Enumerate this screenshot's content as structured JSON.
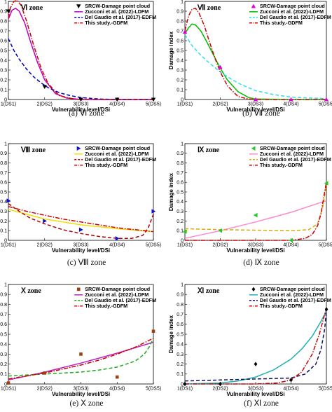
{
  "chart_data": [
    {
      "type": "line",
      "zone": "Ⅵ zone",
      "caption": "(a) Ⅵ zone",
      "xlabel": "Vulnerability level/DSi",
      "ylabel": "Damage index",
      "categories": [
        "1(DS1)",
        "2(DS2)",
        "3(DS3)",
        "4(DS4)",
        "5(DS5)"
      ],
      "ylim": [
        0,
        1
      ],
      "yticks": [
        0,
        0.1,
        0.2,
        0.3,
        0.4,
        0.5,
        0.6,
        0.7,
        0.8,
        0.9,
        1
      ],
      "legend": [
        "SRCW-Damage point cloud",
        "Zucconi et al. (2022)-LDFM",
        "Del Gaudio et al. (2017)-EDFM",
        "This study.-GDFM"
      ],
      "legend_pos": "top-right",
      "points": {
        "marker": "triangle-down",
        "color": "#000000",
        "x": [
          1,
          2,
          3,
          4,
          5
        ],
        "y": [
          0.9,
          0.13,
          0.0,
          0.0,
          0.0
        ]
      },
      "series": [
        {
          "color": "#c000c0",
          "dash": "solid",
          "x": [
            1,
            1.1,
            1.2,
            1.3,
            1.45,
            1.6,
            1.8,
            2.0,
            2.3,
            2.6,
            3.0,
            4.0,
            5.0
          ],
          "y": [
            0.82,
            0.91,
            0.93,
            0.9,
            0.78,
            0.6,
            0.38,
            0.2,
            0.06,
            0.015,
            0.0,
            0.0,
            0.0
          ]
        },
        {
          "color": "#0000c0",
          "dash": "dashed",
          "x": [
            1,
            1.15,
            1.3,
            1.5,
            1.7,
            1.9,
            2.1,
            2.4,
            2.7,
            3.0,
            3.5,
            4.0,
            5.0
          ],
          "y": [
            0.62,
            0.5,
            0.41,
            0.31,
            0.23,
            0.17,
            0.12,
            0.07,
            0.04,
            0.02,
            0.005,
            0.0,
            0.0
          ]
        },
        {
          "color": "#d00000",
          "dash": "dashdot",
          "x": [
            1,
            1.05,
            1.15,
            1.25,
            1.35,
            1.5,
            1.7,
            1.9,
            2.1,
            2.4,
            2.8,
            3.0,
            4.0,
            5.0
          ],
          "y": [
            0.83,
            0.93,
            1.0,
            1.01,
            0.96,
            0.8,
            0.55,
            0.32,
            0.16,
            0.04,
            0.005,
            0.0,
            0.0,
            0.0
          ]
        }
      ]
    },
    {
      "type": "line",
      "zone": "Ⅶ zone",
      "caption": "(b) Ⅶ zone",
      "xlabel": "Vulnerability level/DSi",
      "ylabel": "Damage index",
      "categories": [
        "1(DS1)",
        "2(DS2)",
        "3(DS3)",
        "4(DS4)",
        "5(DS5)"
      ],
      "ylim": [
        0,
        1
      ],
      "yticks": [
        0,
        0.1,
        0.2,
        0.3,
        0.4,
        0.5,
        0.6,
        0.7,
        0.8,
        0.9,
        1
      ],
      "legend": [
        "SRCW-Damage point cloud",
        "Zucconi et al. (2022)-LDFM",
        "Del Gaudio et al. (2017)-EDFM",
        "This study.-GDFM"
      ],
      "legend_pos": "top-right",
      "points": {
        "marker": "triangle-up",
        "color": "#e000e0",
        "x": [
          1,
          2,
          3,
          4,
          5
        ],
        "y": [
          0.69,
          0.33,
          0.0,
          0.0,
          0.0
        ]
      },
      "series": [
        {
          "color": "#00bb00",
          "dash": "solid",
          "x": [
            1,
            1.1,
            1.2,
            1.3,
            1.45,
            1.6,
            1.8,
            2.0,
            2.2,
            2.5,
            2.8,
            3.0,
            4.0,
            5.0
          ],
          "y": [
            0.67,
            0.73,
            0.77,
            0.76,
            0.7,
            0.6,
            0.46,
            0.32,
            0.2,
            0.08,
            0.02,
            0.005,
            0.0,
            0.0
          ]
        },
        {
          "color": "#33ddee",
          "dash": "dashed",
          "x": [
            1,
            1.2,
            1.4,
            1.6,
            1.8,
            2.0,
            2.3,
            2.6,
            3.0,
            3.5,
            4.0,
            4.5,
            5.0
          ],
          "y": [
            0.66,
            0.55,
            0.47,
            0.4,
            0.34,
            0.28,
            0.21,
            0.15,
            0.09,
            0.05,
            0.025,
            0.015,
            0.01
          ]
        },
        {
          "color": "#d00000",
          "dash": "dashdot",
          "x": [
            1,
            1.1,
            1.2,
            1.3,
            1.4,
            1.55,
            1.7,
            1.85,
            2.0,
            2.2,
            2.5,
            2.8,
            3.0,
            4.0,
            5.0
          ],
          "y": [
            0.7,
            0.85,
            0.92,
            0.93,
            0.88,
            0.75,
            0.58,
            0.42,
            0.28,
            0.14,
            0.03,
            0.005,
            0.0,
            0.0,
            0.0
          ]
        }
      ]
    },
    {
      "type": "line",
      "zone": "Ⅷ zone",
      "caption": "(c) Ⅷ zone",
      "xlabel": "Vulnerability level/DSi",
      "ylabel": "Damage index",
      "categories": [
        "1(DS1)",
        "2(DS2)",
        "3(DS3)",
        "4(DS4)",
        "5(DS5)"
      ],
      "ylim": [
        0,
        1
      ],
      "yticks": [
        0,
        0.1,
        0.2,
        0.3,
        0.4,
        0.5,
        0.6,
        0.7,
        0.8,
        0.9,
        1
      ],
      "legend": [
        "SRCW-Damage point cloud",
        "Zucconi et al. (2022)-LDFM",
        "Del Gaudio et al. (2017)-EDFM",
        "This study.-GDFM"
      ],
      "legend_pos": "top-right",
      "points": {
        "marker": "triangle-right",
        "color": "#1010d0",
        "x": [
          1,
          2,
          3,
          4,
          5
        ],
        "y": [
          0.41,
          0.2,
          0.11,
          0.02,
          0.3
        ]
      },
      "series": [
        {
          "color": "#f0e000",
          "dash": "solid",
          "x": [
            1,
            2,
            3,
            4,
            5
          ],
          "y": [
            0.32,
            0.22,
            0.16,
            0.12,
            0.09
          ]
        },
        {
          "color": "#b00000",
          "dash": "dashed",
          "x": [
            1,
            1.3,
            1.6,
            2.0,
            2.5,
            3.0,
            3.5,
            4.0,
            4.4,
            4.7,
            4.85,
            5.0
          ],
          "y": [
            0.38,
            0.3,
            0.23,
            0.17,
            0.11,
            0.07,
            0.04,
            0.02,
            0.02,
            0.05,
            0.12,
            0.27
          ]
        },
        {
          "color": "#d00000",
          "dash": "dashdot",
          "x": [
            1,
            1.5,
            2.0,
            2.5,
            3.0,
            3.5,
            4.0,
            4.5,
            5.0
          ],
          "y": [
            0.35,
            0.3,
            0.26,
            0.22,
            0.19,
            0.16,
            0.13,
            0.11,
            0.09
          ]
        }
      ]
    },
    {
      "type": "line",
      "zone": "Ⅸ zone",
      "caption": "(d) Ⅸ zone",
      "xlabel": "Vulnerability level/DSi",
      "ylabel": "Damage index",
      "categories": [
        "1(DS1)",
        "2(DS2)",
        "3(DS3)",
        "4(DS4)",
        "5(DS5)"
      ],
      "ylim": [
        0,
        1
      ],
      "yticks": [
        0,
        0.1,
        0.2,
        0.3,
        0.4,
        0.5,
        0.6,
        0.7,
        0.8,
        0.9,
        1
      ],
      "legend": [
        "SRCW-Damage point cloud",
        "Zucconi et al. (2022)-LDFM",
        "Del Gaudio et al. (2017)-EDFM",
        "This study.-GDFM"
      ],
      "legend_pos": "top-right",
      "points": {
        "marker": "triangle-left",
        "color": "#20cc20",
        "x": [
          1,
          2,
          3,
          4,
          5
        ],
        "y": [
          0.09,
          0.1,
          0.26,
          0.0,
          0.59
        ]
      },
      "series": [
        {
          "color": "#ff88cc",
          "dash": "solid",
          "x": [
            1,
            2,
            3,
            4,
            5
          ],
          "y": [
            0.02,
            0.1,
            0.19,
            0.29,
            0.41
          ]
        },
        {
          "color": "#ddaa00",
          "dash": "dashed",
          "x": [
            1,
            2,
            3,
            4,
            4.5,
            4.75,
            4.9,
            5.0
          ],
          "y": [
            0.12,
            0.11,
            0.105,
            0.1,
            0.11,
            0.17,
            0.35,
            0.58
          ]
        },
        {
          "color": "#d00000",
          "dash": "dashdot",
          "x": [
            1,
            2,
            3,
            4,
            4.4,
            4.6,
            4.75,
            4.85,
            4.95,
            5.0
          ],
          "y": [
            0.0,
            0.0,
            0.0,
            0.0,
            0.02,
            0.06,
            0.15,
            0.28,
            0.5,
            0.6
          ]
        }
      ]
    },
    {
      "type": "line",
      "zone": "Ⅹ zone",
      "caption": "(e) Ⅹ zone",
      "xlabel": "Vulnerability level/DSi",
      "ylabel": "Damage index",
      "categories": [
        "1(DS1)",
        "2(DS2)",
        "3(DS3)",
        "4(DS4)",
        "5(DS5)"
      ],
      "ylim": [
        0,
        1
      ],
      "yticks": [
        0,
        0.1,
        0.2,
        0.3,
        0.4,
        0.5,
        0.6,
        0.7,
        0.8,
        0.9,
        1
      ],
      "legend": [
        "SRCW-Damage point cloud",
        "Zucconi et al. (2022)-LDFM",
        "Del Gaudio et al. (2017)-EDFM",
        "This study.-GDFM"
      ],
      "legend_pos": "top-right",
      "points": {
        "marker": "square",
        "color": "#a04010",
        "x": [
          1,
          2,
          3,
          4,
          5
        ],
        "y": [
          0.01,
          0.11,
          0.3,
          0.07,
          0.53
        ]
      },
      "series": [
        {
          "color": "#c020c0",
          "dash": "solid",
          "x": [
            1,
            2,
            3,
            4,
            5
          ],
          "y": [
            0.04,
            0.12,
            0.21,
            0.31,
            0.42
          ]
        },
        {
          "color": "#20aa20",
          "dash": "dashed",
          "x": [
            1,
            2,
            3,
            3.5,
            4.0,
            4.5,
            4.75,
            4.9,
            5.0
          ],
          "y": [
            0.08,
            0.1,
            0.12,
            0.14,
            0.17,
            0.23,
            0.3,
            0.38,
            0.46
          ]
        },
        {
          "color": "#d00000",
          "dash": "dashdot",
          "x": [
            1,
            1.5,
            2.0,
            2.5,
            3.0,
            3.5,
            4.0,
            4.5,
            5.0
          ],
          "y": [
            0.05,
            0.08,
            0.11,
            0.15,
            0.19,
            0.24,
            0.3,
            0.37,
            0.46
          ]
        }
      ]
    },
    {
      "type": "line",
      "zone": "Ⅺ zone",
      "caption": "(f) Ⅺ zone",
      "xlabel": "Vulnerability level/DSi",
      "ylabel": "Damage index",
      "categories": [
        "1(DS1)",
        "2(DS2)",
        "3(DS3)",
        "4(DS4)",
        "5(DS5)"
      ],
      "ylim": [
        0,
        1
      ],
      "yticks": [
        0,
        0.1,
        0.2,
        0.3,
        0.4,
        0.5,
        0.6,
        0.7,
        0.8,
        0.9,
        1
      ],
      "legend": [
        "SRCW-Damage point cloud",
        "Zucconi et al. (2022)-LDFM",
        "Del Gaudio et al. (2017)-EDFM",
        "This study.-GDFM"
      ],
      "legend_pos": "top-right",
      "points": {
        "marker": "diamond",
        "color": "#000000",
        "x": [
          1,
          2,
          3,
          4,
          5
        ],
        "y": [
          0.0,
          0.0,
          0.2,
          0.04,
          0.75
        ]
      },
      "series": [
        {
          "color": "#20b0b0",
          "dash": "solid",
          "x": [
            1,
            1.5,
            2.0,
            2.5,
            3.0,
            3.5,
            4.0,
            4.3,
            4.6,
            4.8,
            5.0
          ],
          "y": [
            0.0,
            0.005,
            0.01,
            0.03,
            0.07,
            0.14,
            0.25,
            0.35,
            0.48,
            0.6,
            0.73
          ]
        },
        {
          "color": "#101060",
          "dash": "dashed",
          "x": [
            1,
            2,
            3,
            4,
            4.4,
            4.7,
            4.85,
            4.95,
            5.0
          ],
          "y": [
            0.03,
            0.04,
            0.05,
            0.06,
            0.1,
            0.2,
            0.35,
            0.55,
            0.74
          ]
        },
        {
          "color": "#d00000",
          "dash": "dashdot",
          "x": [
            1,
            2,
            3,
            3.6,
            4.0,
            4.3,
            4.6,
            4.8,
            4.95,
            5.0
          ],
          "y": [
            0.0,
            0.0,
            0.0,
            0.01,
            0.04,
            0.12,
            0.3,
            0.5,
            0.7,
            0.76
          ]
        }
      ]
    }
  ]
}
